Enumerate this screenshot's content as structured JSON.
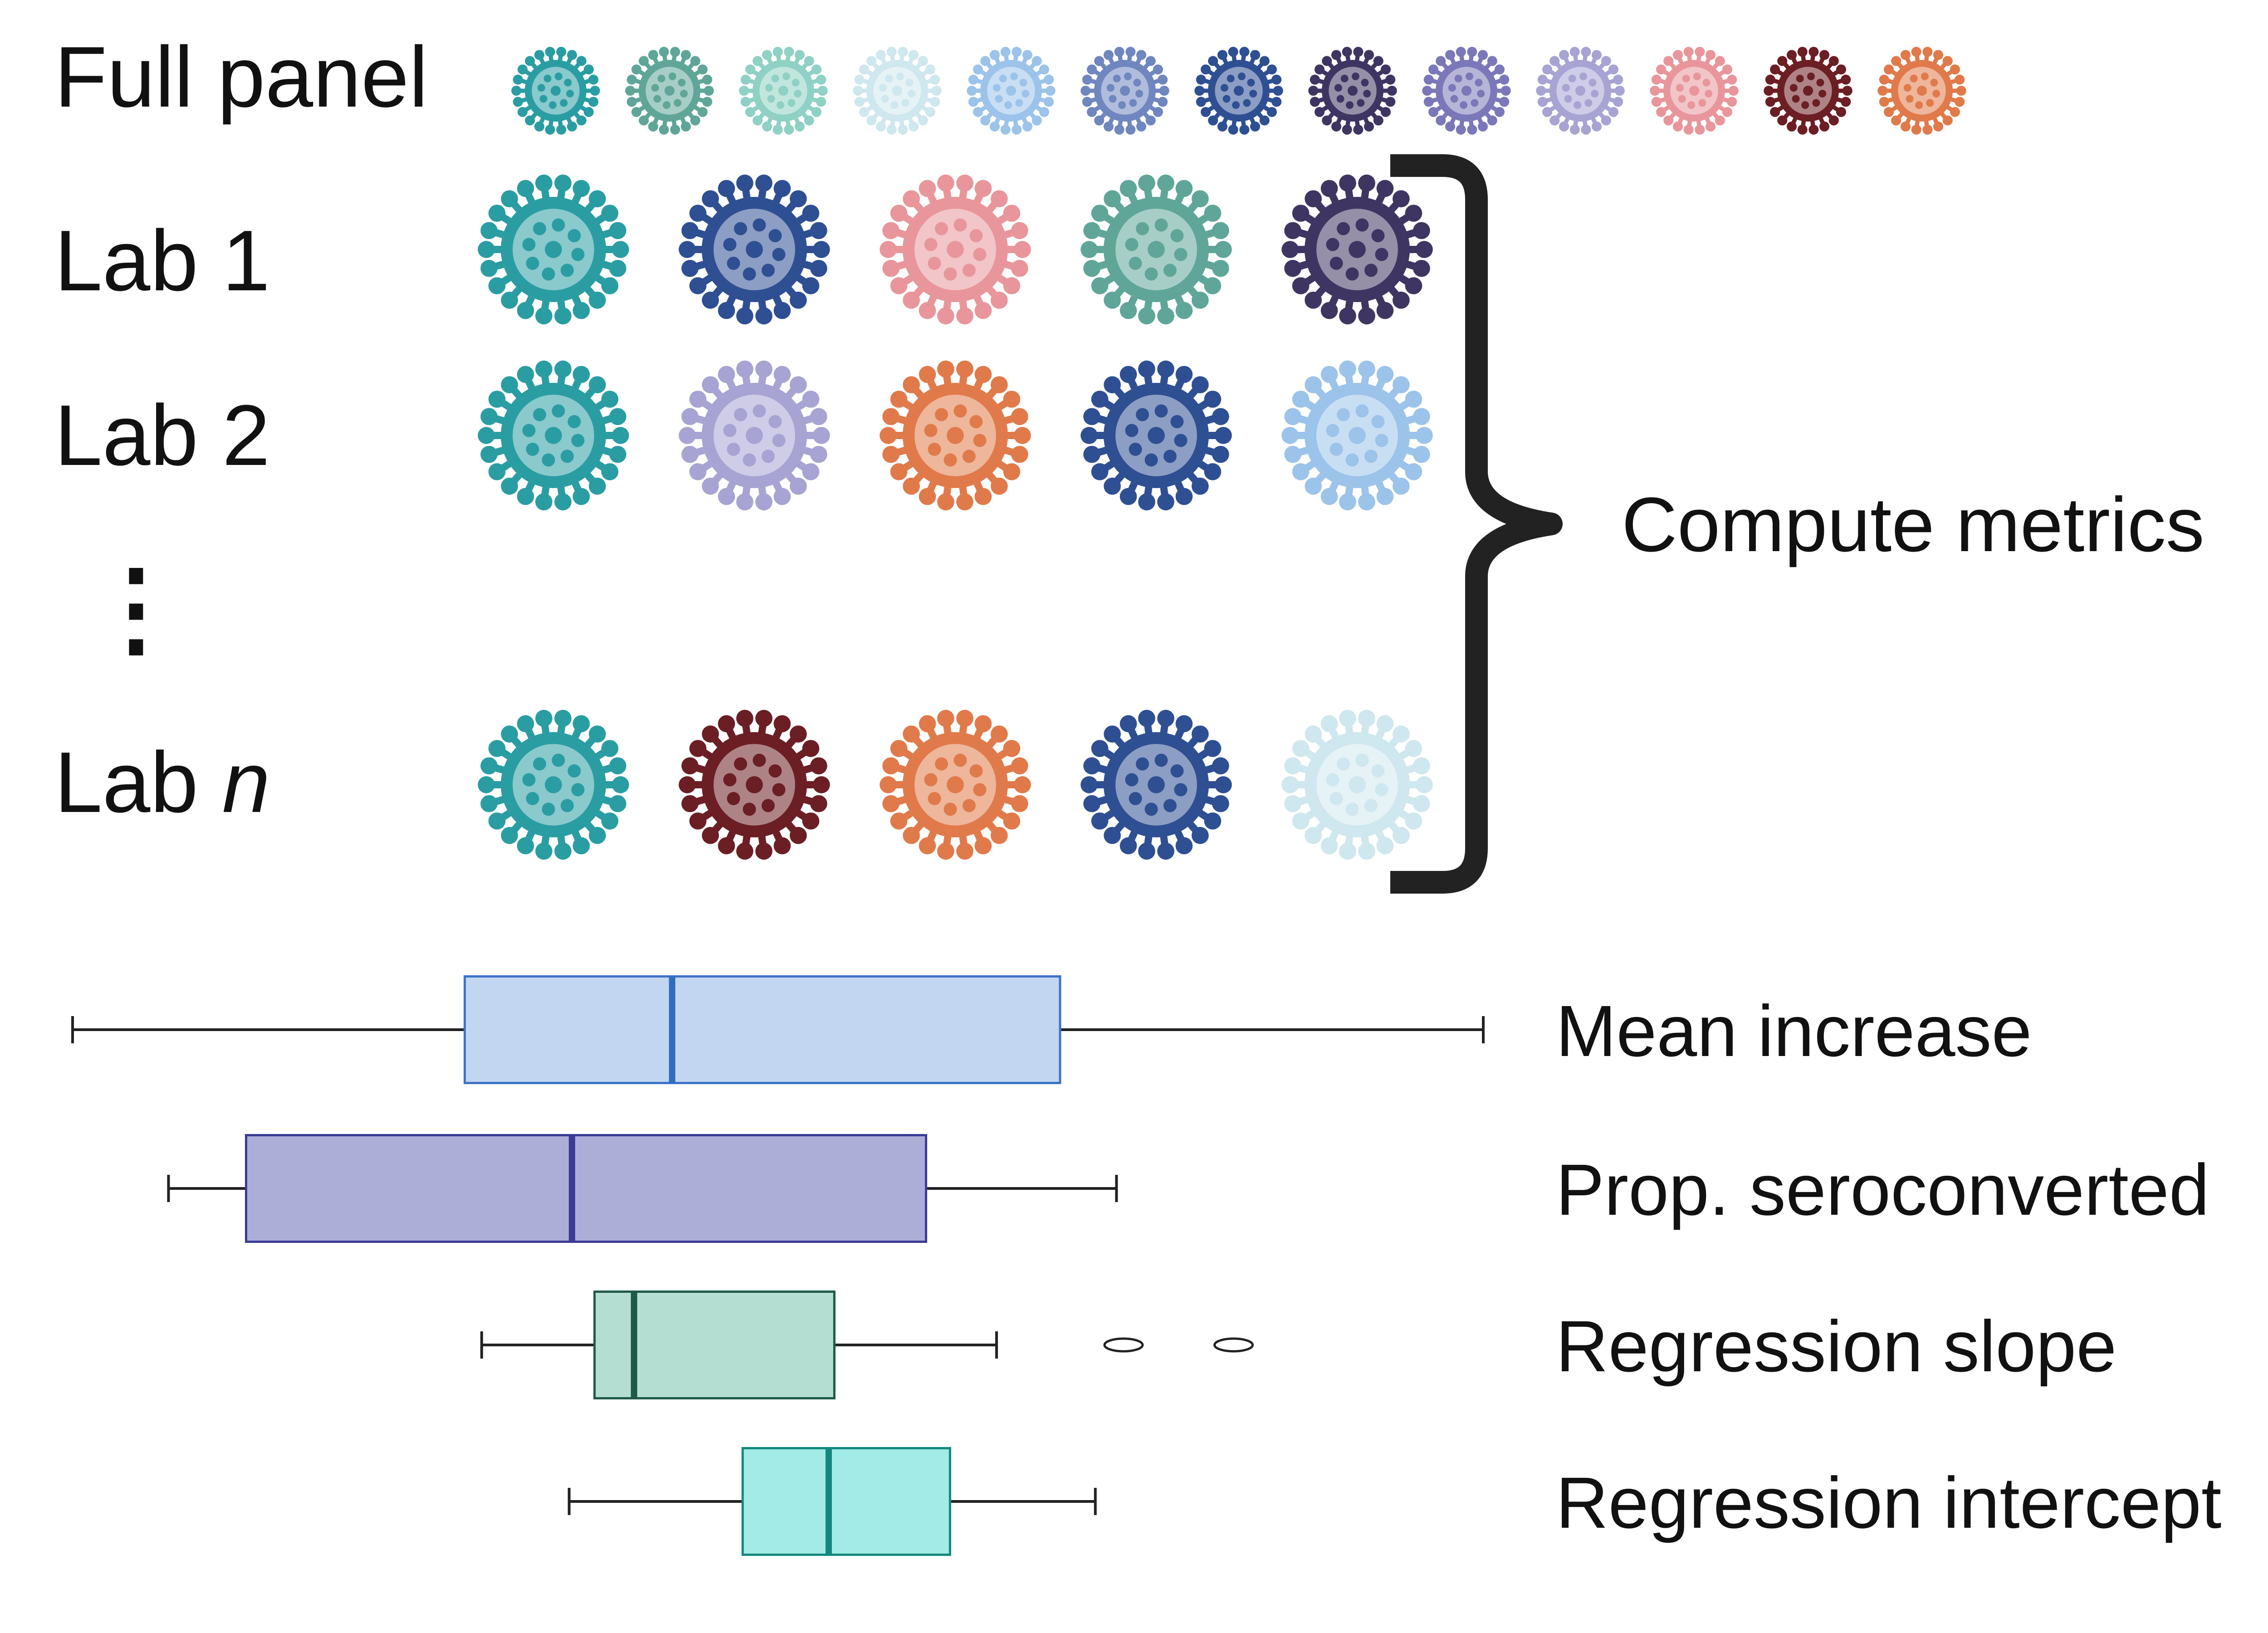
{
  "rows": {
    "full_panel": "Full panel",
    "lab1": "Lab 1",
    "lab2": "Lab 2",
    "vdots": "⋮",
    "labn_prefix": "Lab ",
    "labn_italic": "n"
  },
  "compute_label": "Compute metrics",
  "colors": {
    "teal": "#2a9da3",
    "teal_green": "#5fa698",
    "mint": "#8fd1c4",
    "pale_blue": "#cfe7ee",
    "light_blue": "#9cc3ea",
    "slate_blue": "#6f86bf",
    "navy": "#2f4f93",
    "dark_purple": "#3f3562",
    "periwinkle": "#7a78b8",
    "lavender": "#a7a3d3",
    "pink": "#e8969b",
    "maroon": "#6b1e24",
    "orange": "#e07a4a",
    "bracket": "#222222"
  },
  "virus_rows": {
    "full_panel": [
      "teal",
      "teal_green",
      "mint",
      "pale_blue",
      "light_blue",
      "slate_blue",
      "navy",
      "dark_purple",
      "periwinkle",
      "lavender",
      "pink",
      "maroon",
      "orange"
    ],
    "lab1": [
      "teal",
      "navy",
      "pink",
      "teal_green",
      "dark_purple"
    ],
    "lab2": [
      "teal",
      "lavender",
      "orange",
      "navy",
      "light_blue"
    ],
    "labn": [
      "teal",
      "maroon",
      "orange",
      "navy",
      "pale_blue"
    ]
  },
  "boxplots": [
    {
      "name": "Mean increase",
      "fill": "#c2d6f2",
      "stroke": "#3d73c4",
      "median_color": "#2f6cc0",
      "whisker_low": 0.0,
      "q1": 0.278,
      "median": 0.425,
      "q3": 0.7,
      "whisker_high": 1.0,
      "outliers": []
    },
    {
      "name": "Prop. seroconverted",
      "fill": "#adaed8",
      "stroke": "#3b3a95",
      "median_color": "#3b3a95",
      "whisker_low": 0.068,
      "q1": 0.123,
      "median": 0.354,
      "q3": 0.605,
      "whisker_high": 0.74,
      "outliers": []
    },
    {
      "name": "Regression slope",
      "fill": "#b3ded1",
      "stroke": "#1e5a47",
      "median_color": "#1e5a47",
      "whisker_low": 0.29,
      "q1": 0.37,
      "median": 0.398,
      "q3": 0.54,
      "whisker_high": 0.655,
      "outliers": [
        0.745,
        0.823
      ]
    },
    {
      "name": "Regression intercept",
      "fill": "#a2ebe6",
      "stroke": "#14887e",
      "median_color": "#14887e",
      "whisker_low": 0.352,
      "q1": 0.475,
      "median": 0.536,
      "q3": 0.622,
      "whisker_high": 0.725,
      "outliers": []
    }
  ]
}
